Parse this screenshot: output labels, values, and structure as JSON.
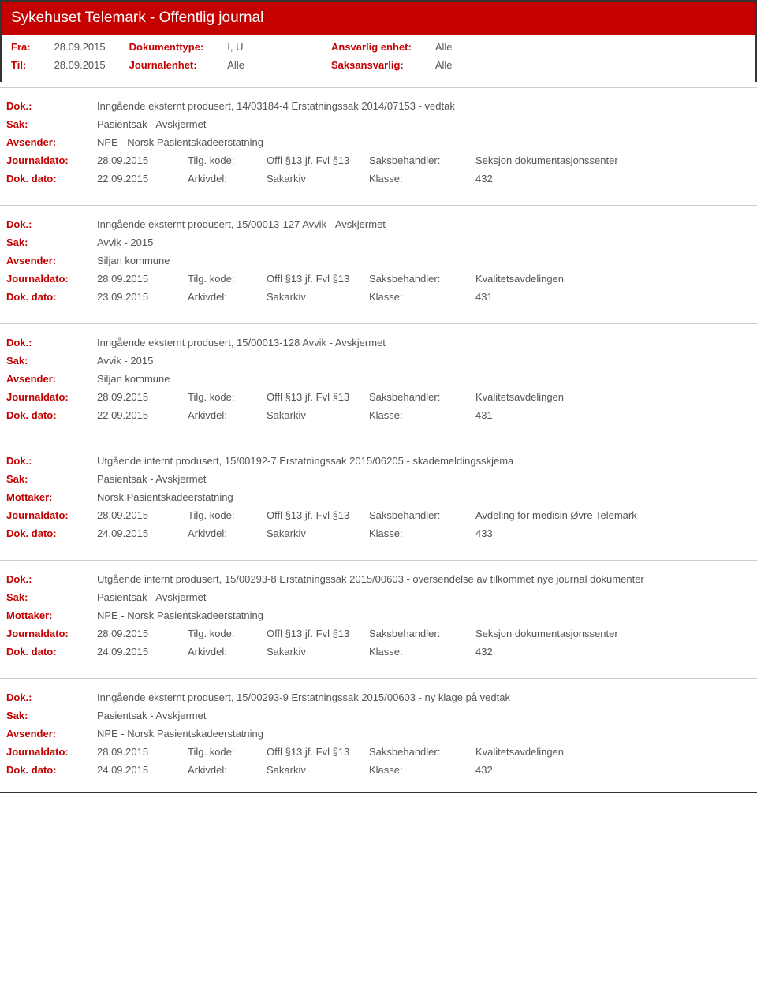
{
  "header": {
    "title": "Sykehuset Telemark - Offentlig journal"
  },
  "meta": {
    "fra_label": "Fra:",
    "fra_value": "28.09.2015",
    "til_label": "Til:",
    "til_value": "28.09.2015",
    "doktype_label": "Dokumenttype:",
    "doktype_value": "I, U",
    "journalenhet_label": "Journalenhet:",
    "journalenhet_value": "Alle",
    "ansvarlig_label": "Ansvarlig enhet:",
    "ansvarlig_value": "Alle",
    "saksansvarlig_label": "Saksansvarlig:",
    "saksansvarlig_value": "Alle"
  },
  "labels": {
    "dok": "Dok.:",
    "sak": "Sak:",
    "avsender": "Avsender:",
    "mottaker": "Mottaker:",
    "journaldato": "Journaldato:",
    "dokdato": "Dok. dato:",
    "tilgkode": "Tilg. kode:",
    "arkivdel": "Arkivdel:",
    "saksbehandler": "Saksbehandler:",
    "klasse": "Klasse:"
  },
  "entries": [
    {
      "dok": "Inngående eksternt produsert, 14/03184-4 Erstatningssak 2014/07153 - vedtak",
      "sak": "Pasientsak - Avskjermet",
      "party_label": "Avsender:",
      "party": "NPE - Norsk Pasientskadeerstatning",
      "journaldato": "28.09.2015",
      "tilgkode": "Offl §13 jf. Fvl §13",
      "saksbehandler": "Seksjon dokumentasjonssenter",
      "dokdato": "22.09.2015",
      "arkivdel": "Sakarkiv",
      "klasse": "432"
    },
    {
      "dok": "Inngående eksternt produsert, 15/00013-127 Avvik - Avskjermet",
      "sak": "Avvik - 2015",
      "party_label": "Avsender:",
      "party": "Siljan kommune",
      "journaldato": "28.09.2015",
      "tilgkode": "Offl §13 jf. Fvl §13",
      "saksbehandler": "Kvalitetsavdelingen",
      "dokdato": "23.09.2015",
      "arkivdel": "Sakarkiv",
      "klasse": "431"
    },
    {
      "dok": "Inngående eksternt produsert, 15/00013-128 Avvik - Avskjermet",
      "sak": "Avvik - 2015",
      "party_label": "Avsender:",
      "party": "Siljan kommune",
      "journaldato": "28.09.2015",
      "tilgkode": "Offl §13 jf. Fvl §13",
      "saksbehandler": "Kvalitetsavdelingen",
      "dokdato": "22.09.2015",
      "arkivdel": "Sakarkiv",
      "klasse": "431"
    },
    {
      "dok": "Utgående internt produsert, 15/00192-7 Erstatningssak 2015/06205 - skademeldingsskjema",
      "sak": "Pasientsak - Avskjermet",
      "party_label": "Mottaker:",
      "party": "Norsk Pasientskadeerstatning",
      "journaldato": "28.09.2015",
      "tilgkode": "Offl §13 jf. Fvl §13",
      "saksbehandler": "Avdeling for medisin Øvre Telemark",
      "dokdato": "24.09.2015",
      "arkivdel": "Sakarkiv",
      "klasse": "433"
    },
    {
      "dok": "Utgående internt produsert, 15/00293-8 Erstatningssak 2015/00603 - oversendelse av tilkommet nye journal dokumenter",
      "sak": "Pasientsak - Avskjermet",
      "party_label": "Mottaker:",
      "party": "NPE - Norsk Pasientskadeerstatning",
      "journaldato": "28.09.2015",
      "tilgkode": "Offl §13 jf. Fvl §13",
      "saksbehandler": "Seksjon dokumentasjonssenter",
      "dokdato": "24.09.2015",
      "arkivdel": "Sakarkiv",
      "klasse": "432"
    },
    {
      "dok": "Inngående eksternt produsert, 15/00293-9 Erstatningssak 2015/00603 - ny klage på vedtak",
      "sak": "Pasientsak - Avskjermet",
      "party_label": "Avsender:",
      "party": "NPE - Norsk Pasientskadeerstatning",
      "journaldato": "28.09.2015",
      "tilgkode": "Offl §13 jf. Fvl §13",
      "saksbehandler": "Kvalitetsavdelingen",
      "dokdato": "24.09.2015",
      "arkivdel": "Sakarkiv",
      "klasse": "432"
    }
  ]
}
